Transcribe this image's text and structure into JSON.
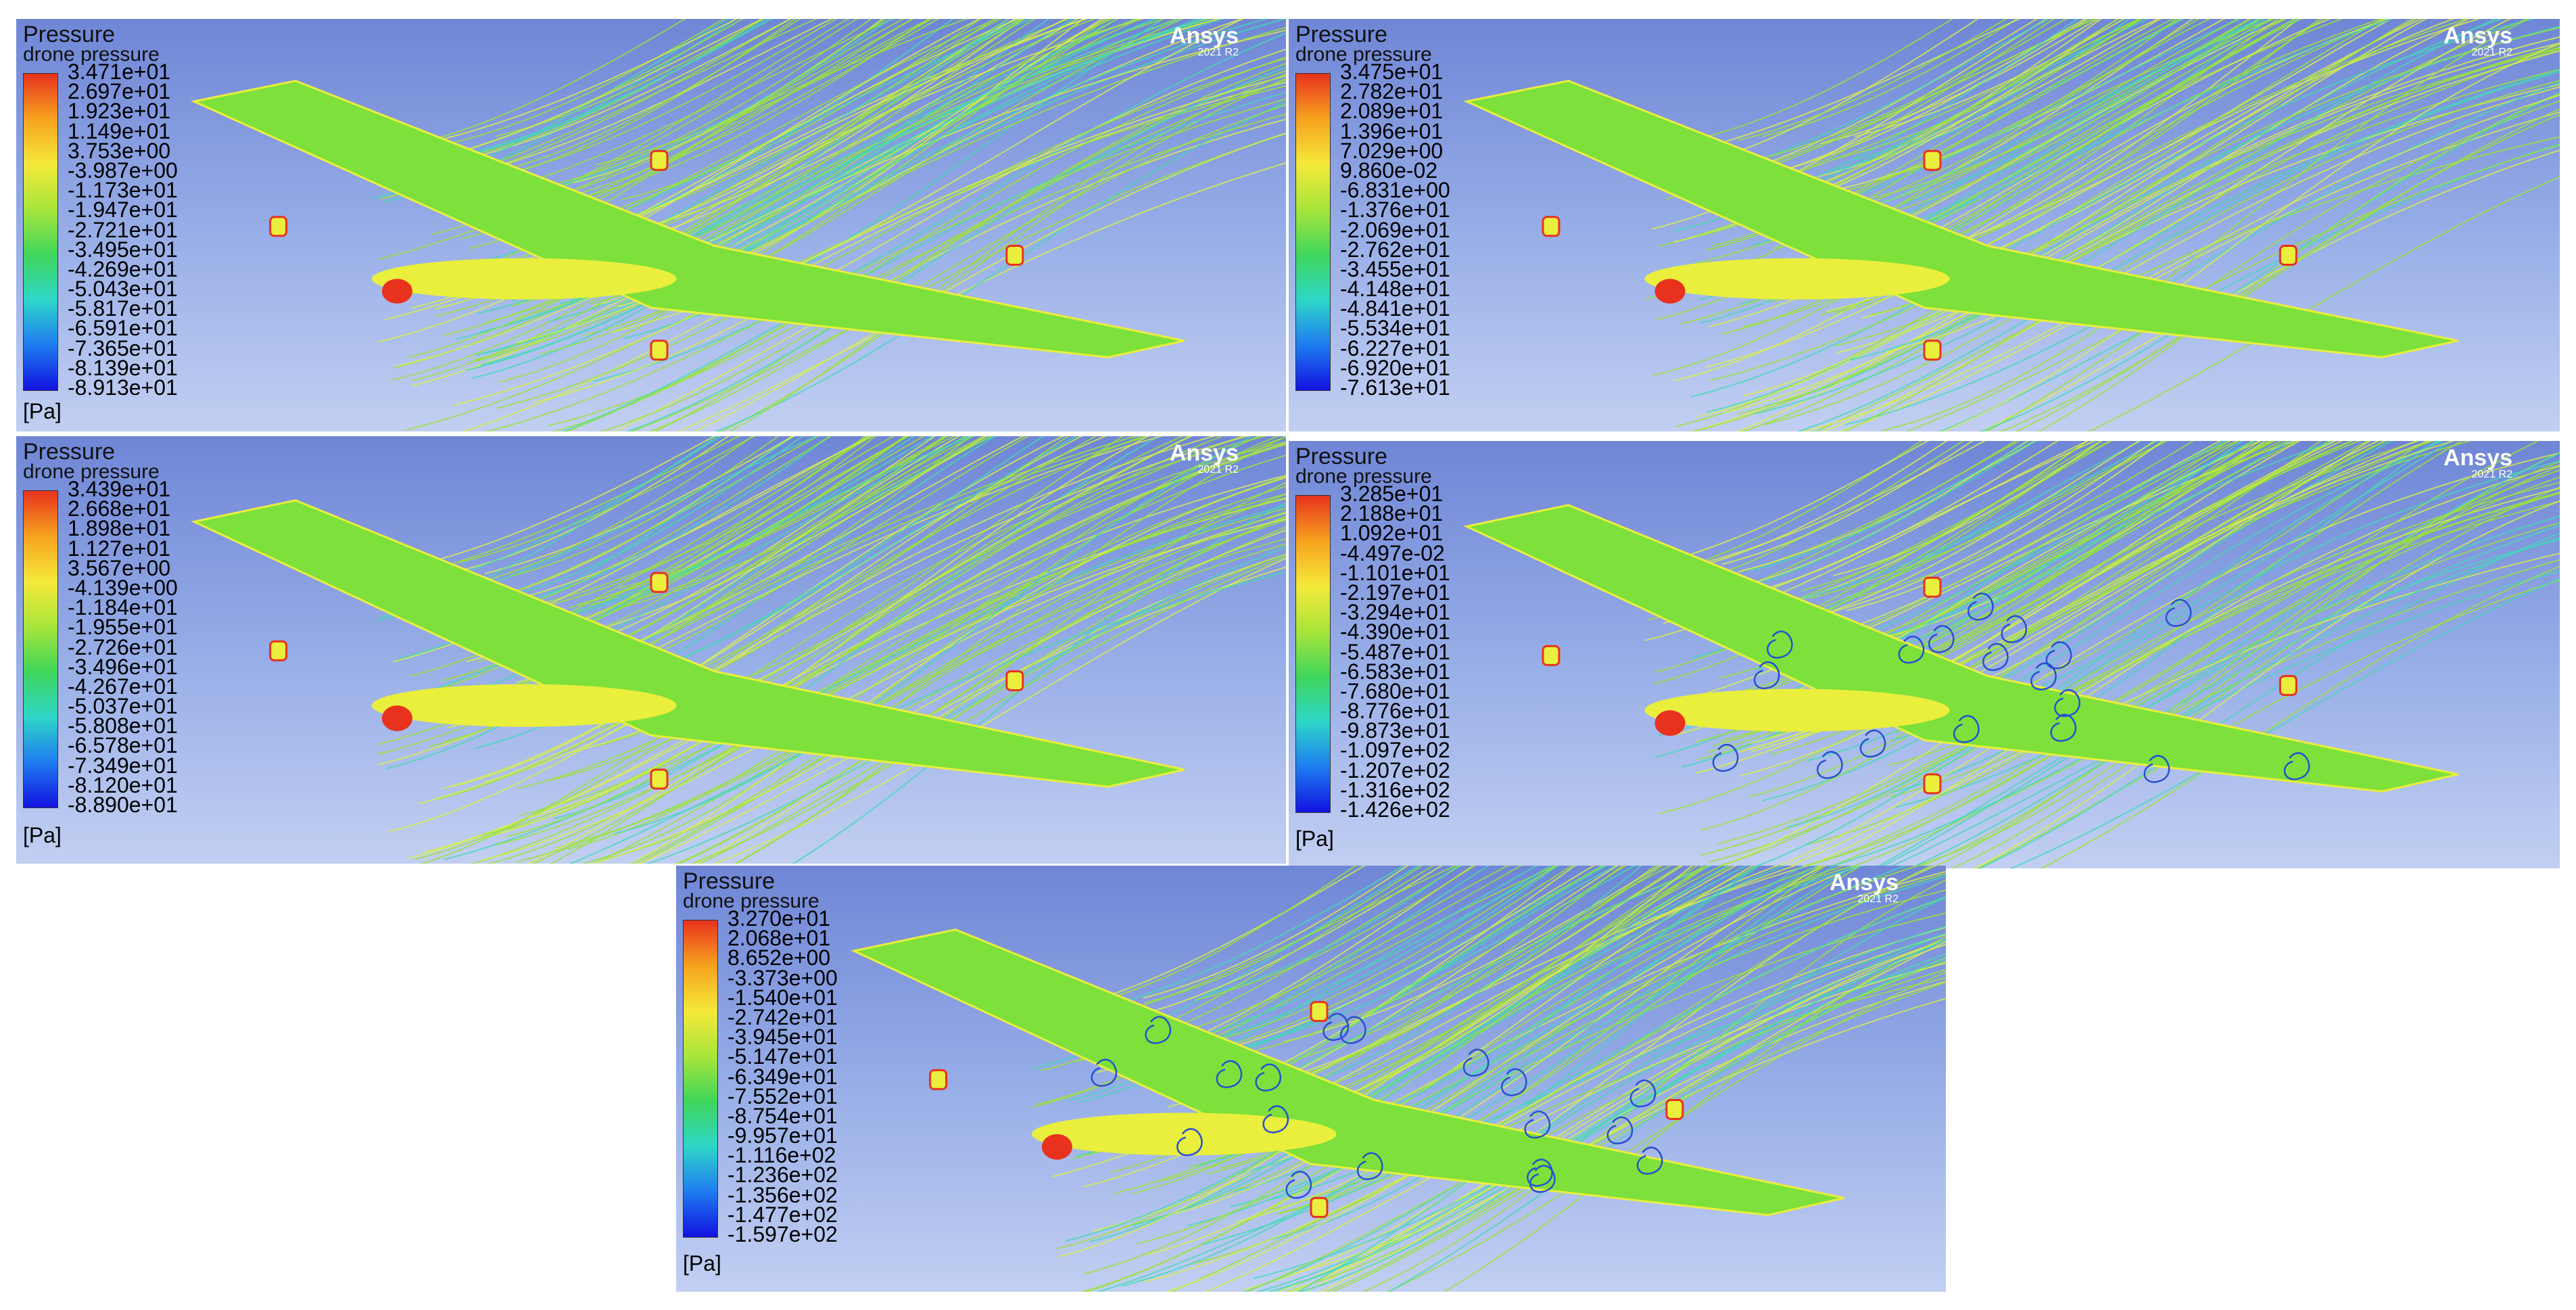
{
  "panels": [
    {
      "title": "Pressure",
      "subtitle": "drone pressure",
      "unit": "[Pa]",
      "brand": "Ansys",
      "version": "2021 R2",
      "ticks": [
        "3.471e+01",
        "2.697e+01",
        "1.923e+01",
        "1.149e+01",
        "3.753e+00",
        "-3.987e+00",
        "-1.173e+01",
        "-1.947e+01",
        "-2.721e+01",
        "-3.495e+01",
        "-4.269e+01",
        "-5.043e+01",
        "-5.817e+01",
        "-6.591e+01",
        "-7.365e+01",
        "-8.139e+01",
        "-8.913e+01"
      ]
    },
    {
      "title": "Pressure",
      "subtitle": "drone pressure",
      "unit": "[Pa]",
      "brand": "Ansys",
      "version": "2021 R2",
      "ticks": [
        "3.475e+01",
        "2.782e+01",
        "2.089e+01",
        "1.396e+01",
        "7.029e+00",
        "9.860e-02",
        "-6.831e+00",
        "-1.376e+01",
        "-2.069e+01",
        "-2.762e+01",
        "-3.455e+01",
        "-4.148e+01",
        "-4.841e+01",
        "-5.534e+01",
        "-6.227e+01",
        "-6.920e+01",
        "-7.613e+01"
      ]
    },
    {
      "title": "Pressure",
      "subtitle": "drone pressure",
      "unit": "[Pa]",
      "brand": "Ansys",
      "version": "2021 R2",
      "ticks": [
        "3.439e+01",
        "2.668e+01",
        "1.898e+01",
        "1.127e+01",
        "3.567e+00",
        "-4.139e+00",
        "-1.184e+01",
        "-1.955e+01",
        "-2.726e+01",
        "-3.496e+01",
        "-4.267e+01",
        "-5.037e+01",
        "-5.808e+01",
        "-6.578e+01",
        "-7.349e+01",
        "-8.120e+01",
        "-8.890e+01"
      ]
    },
    {
      "title": "Pressure",
      "subtitle": "drone pressure",
      "unit": "[Pa]",
      "brand": "Ansys",
      "version": "2021 R2",
      "ticks": [
        "3.285e+01",
        "2.188e+01",
        "1.092e+01",
        "-4.497e-02",
        "-1.101e+01",
        "-2.197e+01",
        "-3.294e+01",
        "-4.390e+01",
        "-5.487e+01",
        "-6.583e+01",
        "-7.680e+01",
        "-8.776e+01",
        "-9.873e+01",
        "-1.097e+02",
        "-1.207e+02",
        "-1.316e+02",
        "-1.426e+02"
      ]
    },
    {
      "title": "Pressure",
      "subtitle": "drone pressure",
      "unit": "[Pa]",
      "brand": "Ansys",
      "version": "2021 R2",
      "ticks": [
        "3.270e+01",
        "2.068e+01",
        "8.652e+00",
        "-3.373e+00",
        "-1.540e+01",
        "-2.742e+01",
        "-3.945e+01",
        "-5.147e+01",
        "-6.349e+01",
        "-7.552e+01",
        "-8.754e+01",
        "-9.957e+01",
        "-1.116e+02",
        "-1.236e+02",
        "-1.356e+02",
        "-1.477e+02",
        "-1.597e+02"
      ]
    }
  ],
  "colors": {
    "background_top": "#6f86d6",
    "background_bottom": "#c2cff2",
    "streamline_green": "#9be23a",
    "streamline_yellow": "#d8ef4a",
    "streamline_cyan": "#43d8b8",
    "streamline_blue": "#2a4fd0",
    "surface_yellow": "#e9ef3c",
    "surface_green": "#7ee03a",
    "stagnation_red": "#e8321e",
    "colormap": [
      "#e8321e",
      "#f6a21e",
      "#f5e93a",
      "#a8e53a",
      "#3fd65a",
      "#2ed6c8",
      "#1e7cf0",
      "#1212e0"
    ]
  }
}
